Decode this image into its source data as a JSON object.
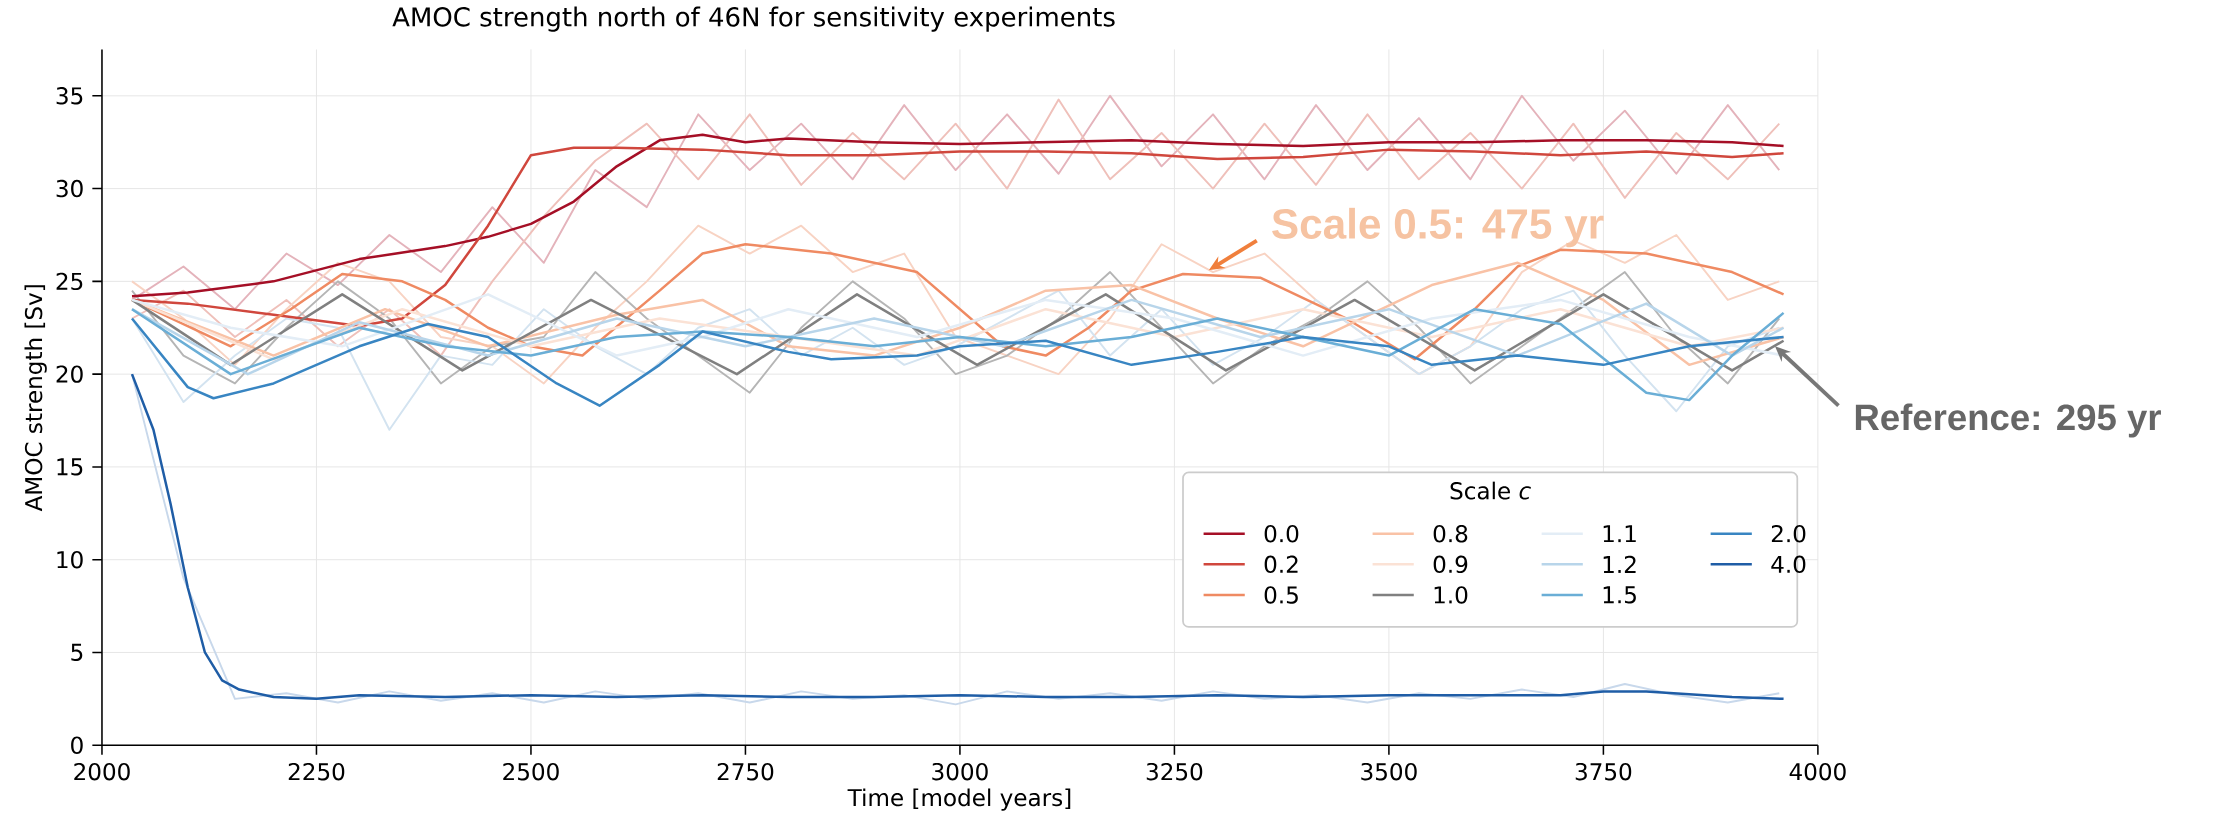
{
  "chart_data": {
    "type": "line",
    "title": "AMOC strength north of 46N for sensitivity experiments",
    "xlabel": "Time [model years]",
    "ylabel": "AMOC strength [Sv]",
    "legend_title": "Scale *c*",
    "xlim": [
      2000,
      4000
    ],
    "ylim": [
      0,
      37.5
    ],
    "xticks": [
      2000,
      2250,
      2500,
      2750,
      3000,
      3250,
      3500,
      3750,
      4000
    ],
    "yticks": [
      0,
      5,
      10,
      15,
      20,
      25,
      30,
      35
    ],
    "grid": true,
    "legend": "bottom right",
    "line_style": "solid",
    "annotations": [
      {
        "text": "Scale 0.5:  475 yr",
        "x": 3290,
        "y": 25.6
      },
      {
        "text": "Reference: 295 yr",
        "x": 3950,
        "y": 21.5
      }
    ],
    "series": [
      {
        "color": "#e4b3bb",
        "x": [
          2035,
          2095,
          2155,
          2215,
          2275,
          2335,
          2395,
          2455,
          2515,
          2575,
          2635,
          2695,
          2755,
          2815,
          2875,
          2935,
          2995,
          3055,
          3115,
          3175,
          3235,
          3295,
          3355,
          3415,
          3475,
          3535,
          3595,
          3655,
          3715,
          3775,
          3835,
          3895,
          3955
        ],
        "values": [
          24,
          25.8,
          23.5,
          26.5,
          24.8,
          27.5,
          25.5,
          29,
          26,
          31,
          29,
          34,
          31,
          33.5,
          30.5,
          34.5,
          31,
          34,
          30.8,
          35,
          31.2,
          34,
          30.5,
          34.5,
          31,
          33.8,
          30.5,
          35,
          31.5,
          34.2,
          30.8,
          34.5,
          31
        ]
      },
      {
        "color": "#efc0ba",
        "x": [
          2035,
          2095,
          2155,
          2215,
          2275,
          2335,
          2395,
          2455,
          2515,
          2575,
          2635,
          2695,
          2755,
          2815,
          2875,
          2935,
          2995,
          3055,
          3115,
          3175,
          3235,
          3295,
          3355,
          3415,
          3475,
          3535,
          3595,
          3655,
          3715,
          3775,
          3835,
          3895,
          3955
        ],
        "values": [
          23,
          24.5,
          22,
          24,
          21.5,
          23.5,
          21,
          25,
          28.5,
          31.5,
          33.5,
          30.5,
          34,
          30.2,
          33,
          30.5,
          33.5,
          30,
          34.8,
          30.5,
          33,
          30,
          33.5,
          30.2,
          34,
          30.5,
          33,
          30,
          33.5,
          29.5,
          33,
          30.5,
          33.5
        ]
      },
      {
        "color": "#f8d3c3",
        "x": [
          2035,
          2095,
          2155,
          2215,
          2275,
          2335,
          2395,
          2455,
          2515,
          2575,
          2635,
          2695,
          2755,
          2815,
          2875,
          2935,
          2995,
          3055,
          3115,
          3175,
          3235,
          3295,
          3355,
          3415,
          3475,
          3535,
          3595,
          3655,
          3715,
          3775,
          3835,
          3895,
          3955
        ],
        "values": [
          25,
          23,
          20.5,
          23.5,
          26,
          25,
          22,
          21.5,
          19.5,
          22.5,
          25,
          28,
          26.5,
          28,
          25.5,
          26.5,
          22,
          21,
          20,
          23,
          27,
          25.5,
          26.5,
          24,
          22,
          20,
          21.5,
          25.5,
          27.2,
          26,
          27.5,
          24,
          25
        ]
      },
      {
        "color": "#b5b5b5",
        "x": [
          2035,
          2095,
          2155,
          2215,
          2275,
          2335,
          2395,
          2455,
          2515,
          2575,
          2635,
          2695,
          2755,
          2815,
          2875,
          2935,
          2995,
          3055,
          3115,
          3175,
          3235,
          3295,
          3355,
          3415,
          3475,
          3535,
          3595,
          3655,
          3715,
          3775,
          3835,
          3895,
          3955
        ],
        "values": [
          24.5,
          21,
          19.5,
          22.5,
          25,
          23,
          19.5,
          21.5,
          22,
          25.5,
          23,
          21,
          19,
          22.5,
          25,
          23,
          20,
          21,
          23,
          25.5,
          22.5,
          19.5,
          21.5,
          23,
          25,
          22.5,
          19.5,
          21.5,
          23.5,
          25.5,
          22,
          19.5,
          23
        ]
      },
      {
        "color": "#d3e3f0",
        "x": [
          2035,
          2095,
          2155,
          2215,
          2275,
          2335,
          2395,
          2455,
          2515,
          2575,
          2635,
          2695,
          2755,
          2815,
          2875,
          2935,
          2995,
          3055,
          3115,
          3175,
          3235,
          3295,
          3355,
          3415,
          3475,
          3535,
          3595,
          3655,
          3715,
          3775,
          3835,
          3895,
          3955
        ],
        "values": [
          23,
          18.5,
          21,
          23,
          22.5,
          17,
          21,
          20.5,
          23.5,
          21.5,
          20,
          22.5,
          23.5,
          21,
          22.5,
          20.5,
          21.5,
          23,
          24.5,
          21,
          23.5,
          20.5,
          22,
          24,
          22,
          20,
          21.5,
          23.5,
          24.5,
          21,
          18,
          21.5,
          22.5
        ]
      },
      {
        "color": "#c8d8eb",
        "x": [
          2035,
          2095,
          2155,
          2215,
          2275,
          2335,
          2395,
          2455,
          2515,
          2575,
          2635,
          2695,
          2755,
          2815,
          2875,
          2935,
          2995,
          3055,
          3115,
          3175,
          3235,
          3295,
          3355,
          3415,
          3475,
          3535,
          3595,
          3655,
          3715,
          3775,
          3835,
          3895,
          3955
        ],
        "values": [
          20,
          9,
          2.5,
          2.8,
          2.3,
          2.9,
          2.4,
          2.8,
          2.3,
          2.9,
          2.5,
          2.8,
          2.3,
          2.9,
          2.5,
          2.7,
          2.2,
          2.9,
          2.5,
          2.8,
          2.4,
          2.9,
          2.5,
          2.7,
          2.3,
          2.8,
          2.5,
          3.0,
          2.6,
          3.3,
          2.7,
          2.3,
          2.8
        ]
      },
      {
        "name": "0.0",
        "color": "#a50f26",
        "x": [
          2035,
          2100,
          2200,
          2300,
          2400,
          2450,
          2500,
          2550,
          2600,
          2650,
          2700,
          2750,
          2800,
          2900,
          3000,
          3100,
          3200,
          3300,
          3400,
          3500,
          3600,
          3700,
          3800,
          3900,
          3960
        ],
        "values": [
          24.2,
          24.4,
          25,
          26.2,
          26.9,
          27.4,
          28.1,
          29.3,
          31.2,
          32.6,
          32.9,
          32.5,
          32.7,
          32.5,
          32.4,
          32.5,
          32.6,
          32.4,
          32.3,
          32.5,
          32.5,
          32.6,
          32.6,
          32.5,
          32.3
        ]
      },
      {
        "name": "0.2",
        "color": "#d0473d",
        "x": [
          2035,
          2100,
          2200,
          2300,
          2350,
          2400,
          2450,
          2500,
          2550,
          2600,
          2700,
          2800,
          2900,
          3000,
          3100,
          3200,
          3300,
          3400,
          3500,
          3600,
          3700,
          3800,
          3900,
          3960
        ],
        "values": [
          24,
          23.8,
          23.2,
          22.6,
          23,
          24.8,
          28,
          31.8,
          32.2,
          32.2,
          32.1,
          31.8,
          31.8,
          32,
          32,
          31.9,
          31.6,
          31.7,
          32.1,
          32,
          31.8,
          32,
          31.7,
          31.9
        ]
      },
      {
        "name": "0.5",
        "color": "#ef8a62",
        "x": [
          2035,
          2150,
          2220,
          2280,
          2350,
          2400,
          2450,
          2500,
          2560,
          2650,
          2700,
          2750,
          2850,
          2950,
          3000,
          3050,
          3100,
          3150,
          3200,
          3260,
          3350,
          3450,
          3530,
          3600,
          3650,
          3700,
          3800,
          3900,
          3960
        ],
        "values": [
          24,
          21.5,
          23.5,
          25.4,
          25,
          24,
          22.5,
          21.5,
          21,
          24.5,
          26.5,
          27,
          26.5,
          25.5,
          23.5,
          21.5,
          21,
          22.5,
          24.5,
          25.4,
          25.2,
          23,
          20.8,
          23.5,
          25.8,
          26.7,
          26.5,
          25.5,
          24.3
        ]
      },
      {
        "name": "0.8",
        "color": "#f9c2a6",
        "x": [
          2035,
          2200,
          2330,
          2450,
          2600,
          2700,
          2800,
          2900,
          3000,
          3100,
          3200,
          3300,
          3400,
          3550,
          3650,
          3750,
          3850,
          3960
        ],
        "values": [
          24,
          21,
          23.5,
          21.5,
          23.2,
          24,
          21.5,
          21,
          22.5,
          24.5,
          24.8,
          23,
          21.5,
          24.8,
          26,
          24,
          20.5,
          22
        ]
      },
      {
        "name": "0.9",
        "color": "#fbe2d5",
        "x": [
          2035,
          2200,
          2350,
          2500,
          2650,
          2800,
          2950,
          3100,
          3250,
          3400,
          3550,
          3700,
          3850,
          3960
        ],
        "values": [
          24,
          20.8,
          23.5,
          21.5,
          23,
          22,
          21,
          23.5,
          22,
          23.5,
          22,
          23.5,
          21.5,
          22.5
        ]
      },
      {
        "name": "1.0",
        "color": "#808080",
        "x": [
          2035,
          2150,
          2280,
          2420,
          2570,
          2740,
          2880,
          3020,
          3170,
          3310,
          3460,
          3600,
          3750,
          3900,
          3960
        ],
        "values": [
          24,
          20.5,
          24.3,
          20.2,
          24,
          20,
          24.3,
          20.5,
          24.3,
          20.2,
          24,
          20.2,
          24.3,
          20.2,
          21.8
        ]
      },
      {
        "name": "1.1",
        "color": "#e3edf6",
        "x": [
          2035,
          2150,
          2280,
          2450,
          2600,
          2700,
          2800,
          2950,
          3100,
          3250,
          3400,
          3550,
          3700,
          3850,
          3960
        ],
        "values": [
          24,
          22.5,
          21.5,
          24.3,
          21,
          22,
          23.5,
          22,
          24,
          23,
          21,
          23,
          24,
          22,
          21
        ]
      },
      {
        "name": "1.2",
        "color": "#b8d5ea",
        "x": [
          2035,
          2170,
          2300,
          2450,
          2600,
          2750,
          2900,
          3050,
          3200,
          3350,
          3500,
          3650,
          3800,
          3900,
          3960
        ],
        "values": [
          23.5,
          20,
          22.8,
          21,
          23,
          21.5,
          23,
          21.5,
          24,
          22,
          23.5,
          21,
          23.8,
          21,
          22.5
        ]
      },
      {
        "name": "1.5",
        "color": "#6aaed6",
        "x": [
          2035,
          2150,
          2300,
          2400,
          2500,
          2600,
          2700,
          2800,
          2900,
          3000,
          3100,
          3200,
          3300,
          3400,
          3500,
          3600,
          3700,
          3800,
          3850,
          3900,
          3960
        ],
        "values": [
          23.5,
          20,
          22.5,
          21.5,
          21,
          22,
          22.3,
          22,
          21.5,
          22,
          21.5,
          22,
          23,
          22,
          21,
          23.5,
          22.7,
          19,
          18.6,
          21,
          23.3
        ]
      },
      {
        "name": "2.0",
        "color": "#3885c2",
        "x": [
          2035,
          2100,
          2130,
          2200,
          2300,
          2380,
          2450,
          2530,
          2580,
          2650,
          2700,
          2800,
          2850,
          2950,
          3000,
          3100,
          3200,
          3300,
          3400,
          3500,
          3550,
          3650,
          3750,
          3850,
          3960
        ],
        "values": [
          23,
          19.3,
          18.7,
          19.5,
          21.5,
          22.7,
          22,
          19.5,
          18.3,
          20.5,
          22.3,
          21.2,
          20.8,
          21,
          21.5,
          21.8,
          20.5,
          21.2,
          22,
          21.5,
          20.5,
          21,
          20.5,
          21.5,
          22
        ]
      },
      {
        "name": "4.0",
        "color": "#1f5da6",
        "x": [
          2035,
          2060,
          2080,
          2100,
          2120,
          2140,
          2160,
          2200,
          2250,
          2300,
          2400,
          2500,
          2600,
          2700,
          2800,
          2900,
          3000,
          3100,
          3200,
          3300,
          3400,
          3500,
          3600,
          3700,
          3750,
          3800,
          3900,
          3960
        ],
        "values": [
          20,
          17,
          13,
          8.5,
          5,
          3.5,
          3,
          2.6,
          2.5,
          2.7,
          2.6,
          2.7,
          2.6,
          2.7,
          2.6,
          2.6,
          2.7,
          2.6,
          2.6,
          2.7,
          2.6,
          2.7,
          2.7,
          2.7,
          2.9,
          2.9,
          2.6,
          2.5
        ]
      }
    ]
  }
}
